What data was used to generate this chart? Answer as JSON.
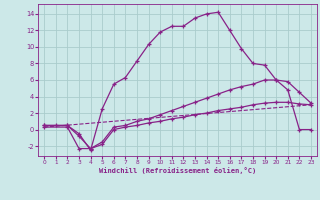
{
  "xlabel": "Windchill (Refroidissement éolien,°C)",
  "background_color": "#cce8e8",
  "grid_color": "#aacccc",
  "line_color": "#882288",
  "xlim": [
    -0.5,
    23.5
  ],
  "ylim": [
    -3.2,
    15.2
  ],
  "xticks": [
    0,
    1,
    2,
    3,
    4,
    5,
    6,
    7,
    8,
    9,
    10,
    11,
    12,
    13,
    14,
    15,
    16,
    17,
    18,
    19,
    20,
    21,
    22,
    23
  ],
  "yticks": [
    -2,
    0,
    2,
    4,
    6,
    8,
    10,
    12,
    14
  ],
  "line1_x": [
    0,
    1,
    2,
    3,
    4,
    5,
    6,
    7,
    8,
    9,
    10,
    11,
    12,
    13,
    14,
    15,
    16,
    17,
    18,
    19,
    20,
    21,
    22,
    23
  ],
  "line1_y": [
    0.5,
    0.5,
    0.5,
    -0.5,
    -2.5,
    2.5,
    5.5,
    6.3,
    8.3,
    10.3,
    11.8,
    12.5,
    12.5,
    13.5,
    14.0,
    14.2,
    12.0,
    9.8,
    8.0,
    7.8,
    6.0,
    4.8,
    0.0,
    0.0
  ],
  "line2_x": [
    0,
    2,
    3,
    4,
    5,
    6,
    7,
    8,
    9,
    10,
    11,
    12,
    13,
    14,
    15,
    16,
    17,
    18,
    19,
    20,
    21,
    22,
    23
  ],
  "line2_y": [
    0.5,
    0.5,
    -0.8,
    -2.3,
    -1.5,
    0.3,
    0.5,
    1.0,
    1.3,
    1.8,
    2.3,
    2.8,
    3.3,
    3.8,
    4.3,
    4.8,
    5.2,
    5.5,
    6.0,
    6.0,
    5.8,
    4.5,
    3.2
  ],
  "line3_x": [
    0,
    23
  ],
  "line3_y": [
    0.3,
    3.0
  ],
  "line4_x": [
    0,
    2,
    3,
    4,
    5,
    6,
    7,
    8,
    9,
    10,
    11,
    12,
    13,
    14,
    15,
    16,
    17,
    18,
    19,
    20,
    21,
    22,
    23
  ],
  "line4_y": [
    0.3,
    0.3,
    -2.3,
    -2.3,
    -1.8,
    0.0,
    0.3,
    0.5,
    0.8,
    1.0,
    1.3,
    1.5,
    1.8,
    2.0,
    2.3,
    2.5,
    2.7,
    3.0,
    3.2,
    3.3,
    3.3,
    3.1,
    3.0
  ]
}
